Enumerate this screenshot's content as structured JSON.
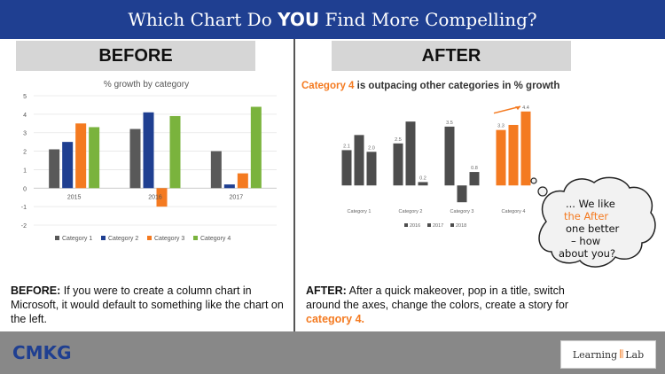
{
  "header": {
    "title_pre": "Which Chart Do ",
    "title_em": "YOU",
    "title_post": " Find More Compelling?"
  },
  "before": {
    "label": "BEFORE",
    "caption_lead": "BEFORE:",
    "caption_text": "  If you were to create a column chart in Microsoft, it would default to something like the  chart on the left."
  },
  "after": {
    "label": "AFTER",
    "title_accent": "Category 4",
    "title_rest": " is outpacing other categories in % growth",
    "caption_lead": "AFTER:",
    "caption_text": "  After a quick makeover, pop in a title, switch around the axes, change the colors, create a story for ",
    "caption_accent": "category 4."
  },
  "bubble": {
    "lines": [
      "... We like",
      "the After",
      "one better",
      "– how",
      "about you?"
    ]
  },
  "footer": {
    "left_logo": "CMKG",
    "right_logo_a": "Learning",
    "right_logo_b": "Lab"
  },
  "colors": {
    "header": "#1f3f91",
    "cat1": "#595959",
    "cat2": "#1f3f91",
    "cat3": "#f47a20",
    "cat4": "#7ab33d",
    "after_gray": "#4d4d4d",
    "after_orange": "#f47a20"
  },
  "chart_data": [
    {
      "type": "bar",
      "title": "% growth by category",
      "categories": [
        "2015",
        "2016",
        "2017"
      ],
      "series": [
        {
          "name": "Category 1",
          "values": [
            2.1,
            3.2,
            2.0
          ]
        },
        {
          "name": "Category 2",
          "values": [
            2.5,
            4.1,
            0.2
          ]
        },
        {
          "name": "Category 3",
          "values": [
            3.5,
            -1.0,
            0.8
          ]
        },
        {
          "name": "Category 4",
          "values": [
            3.3,
            3.9,
            4.4
          ]
        }
      ],
      "ylim": [
        -2,
        5
      ],
      "yticks": [
        -2,
        -1,
        0,
        1,
        2,
        3,
        4,
        5
      ],
      "legend": "bottom",
      "grid": true
    },
    {
      "type": "bar",
      "categories": [
        "Category 1",
        "Category 2",
        "Category 3",
        "Category 4"
      ],
      "series": [
        {
          "name": "2016",
          "values": [
            2.1,
            2.5,
            3.5,
            3.3
          ]
        },
        {
          "name": "2017",
          "values": [
            3.0,
            3.8,
            -1.0,
            3.6
          ]
        },
        {
          "name": "2018",
          "values": [
            2.0,
            0.2,
            0.8,
            4.4
          ]
        }
      ],
      "data_labels": [
        [
          "2.1",
          "",
          "2.0"
        ],
        [
          "2.5",
          "",
          "0.2"
        ],
        [
          "3.5",
          "",
          "0.8"
        ],
        [
          "3.3",
          "",
          "4.4"
        ]
      ],
      "ylim": [
        -1.2,
        4.6
      ],
      "legend": "bottom",
      "grid": false
    }
  ]
}
